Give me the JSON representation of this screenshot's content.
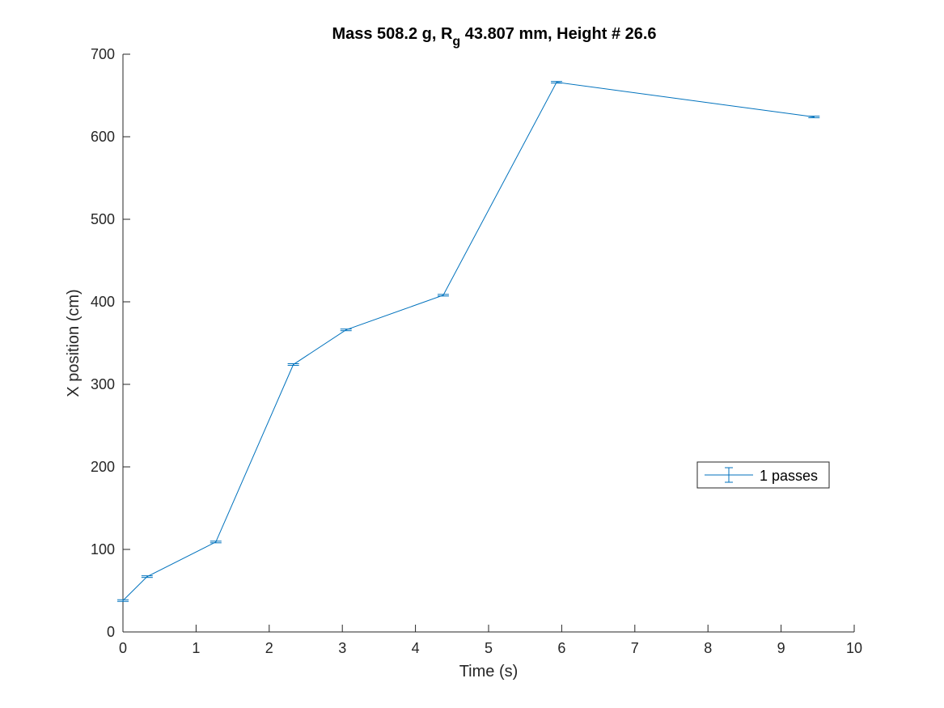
{
  "chart_data": {
    "type": "line",
    "title": {
      "prefix": "Mass 508.2 g, R",
      "subscript": "g",
      "suffix": " 43.807 mm,  Height # 26.6"
    },
    "xlabel": "Time (s)",
    "ylabel": "X position (cm)",
    "xlim": [
      0,
      10
    ],
    "ylim": [
      0,
      700
    ],
    "xticks": [
      0,
      1,
      2,
      3,
      4,
      5,
      6,
      7,
      8,
      9,
      10
    ],
    "yticks": [
      0,
      100,
      200,
      300,
      400,
      500,
      600,
      700
    ],
    "grid": false,
    "legend_position": "right",
    "series": [
      {
        "name": "1 passes",
        "color": "#0072BD",
        "error_bars": true,
        "points": [
          {
            "x": 0.0,
            "y": 38,
            "err": 1
          },
          {
            "x": 0.33,
            "y": 67,
            "err": 1
          },
          {
            "x": 1.27,
            "y": 109,
            "err": 1
          },
          {
            "x": 2.33,
            "y": 324,
            "err": 1
          },
          {
            "x": 3.05,
            "y": 366,
            "err": 1
          },
          {
            "x": 4.38,
            "y": 408,
            "err": 1
          },
          {
            "x": 5.93,
            "y": 666,
            "err": 1
          },
          {
            "x": 9.45,
            "y": 624,
            "err": 1
          }
        ]
      }
    ]
  }
}
